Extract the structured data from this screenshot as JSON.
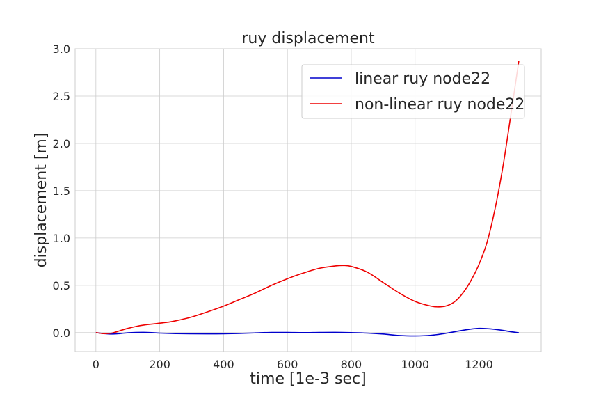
{
  "chart_data": {
    "type": "line",
    "title": "ruy displacement",
    "xlabel": "time [1e-3 sec]",
    "ylabel": "displacement [m]",
    "xlim": [
      -65,
      1395
    ],
    "ylim": [
      -0.2,
      3.0
    ],
    "xticks": [
      0,
      200,
      400,
      600,
      800,
      1000,
      1200
    ],
    "yticks": [
      0.0,
      0.5,
      1.0,
      1.5,
      2.0,
      2.5,
      3.0
    ],
    "xtick_labels": [
      "0",
      "200",
      "400",
      "600",
      "800",
      "1000",
      "1200"
    ],
    "ytick_labels": [
      "0.0",
      "0.5",
      "1.0",
      "1.5",
      "2.0",
      "2.5",
      "3.0"
    ],
    "grid": true,
    "legend_position": "top-right",
    "series": [
      {
        "name": "linear ruy node22",
        "color": "#0000cc",
        "x": [
          0,
          25,
          50,
          75,
          100,
          125,
          150,
          175,
          200,
          250,
          300,
          350,
          400,
          450,
          500,
          550,
          600,
          650,
          700,
          750,
          800,
          850,
          900,
          950,
          1000,
          1050,
          1100,
          1150,
          1200,
          1250,
          1300,
          1325
        ],
        "y": [
          0,
          -0.01,
          -0.015,
          -0.01,
          -0.002,
          0.002,
          0.003,
          0.0,
          -0.005,
          -0.01,
          -0.012,
          -0.013,
          -0.012,
          -0.008,
          -0.003,
          0.002,
          0.002,
          0.0,
          0.002,
          0.003,
          0.0,
          -0.005,
          -0.015,
          -0.03,
          -0.035,
          -0.028,
          -0.005,
          0.025,
          0.045,
          0.035,
          0.01,
          -0.002
        ]
      },
      {
        "name": "non-linear ruy node22",
        "color": "#ee0000",
        "x": [
          0,
          25,
          50,
          75,
          100,
          125,
          150,
          175,
          200,
          225,
          250,
          300,
          350,
          400,
          450,
          500,
          550,
          600,
          650,
          700,
          750,
          775,
          800,
          850,
          900,
          950,
          1000,
          1050,
          1075,
          1100,
          1125,
          1150,
          1175,
          1200,
          1225,
          1250,
          1275,
          1300,
          1325
        ],
        "y": [
          0,
          -0.01,
          -0.005,
          0.02,
          0.045,
          0.065,
          0.08,
          0.09,
          0.1,
          0.11,
          0.125,
          0.165,
          0.22,
          0.28,
          0.35,
          0.42,
          0.5,
          0.57,
          0.63,
          0.68,
          0.705,
          0.71,
          0.7,
          0.64,
          0.53,
          0.42,
          0.33,
          0.28,
          0.272,
          0.285,
          0.33,
          0.42,
          0.55,
          0.72,
          0.95,
          1.3,
          1.75,
          2.3,
          2.87
        ]
      }
    ]
  }
}
